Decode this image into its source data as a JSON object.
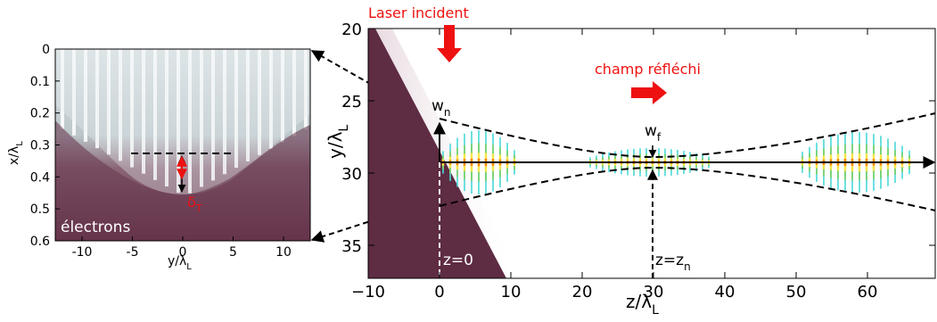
{
  "left_panel": {
    "x_ticks": [
      "-10",
      "-5",
      "0",
      "5",
      "10"
    ],
    "y_ticks": [
      "0",
      "0.1",
      "0.2",
      "0.3",
      "0.4",
      "0.5",
      "0.6"
    ],
    "xlabel_main": "y/λ",
    "xlabel_sub": "L",
    "ylabel_main": "x/λ",
    "ylabel_sub": "L",
    "electrons_label": "électrons",
    "delta_main": "δ",
    "delta_sub": "T"
  },
  "right_panel": {
    "x_ticks": [
      "−10",
      "0",
      "10",
      "20",
      "30",
      "40",
      "50",
      "60"
    ],
    "y_ticks": [
      "20",
      "25",
      "30",
      "35"
    ],
    "xlabel_main": "z/λ",
    "xlabel_sub": "L",
    "ylabel_main": "y/λ",
    "ylabel_sub": "L",
    "laser_label": "Laser incident",
    "reflected_label": "champ réfléchi",
    "wn_main": "w",
    "wn_sub": "n",
    "wf_main": "w",
    "wf_sub": "f",
    "z0_label": "z=0",
    "zn_main": "z=z",
    "zn_sub": "n"
  },
  "colors": {
    "plasma": "#5e2c43",
    "annotation": "#ee1111",
    "field": [
      "#ff8800",
      "#f5e64a",
      "#49d9d9",
      "#7fd36b"
    ]
  }
}
